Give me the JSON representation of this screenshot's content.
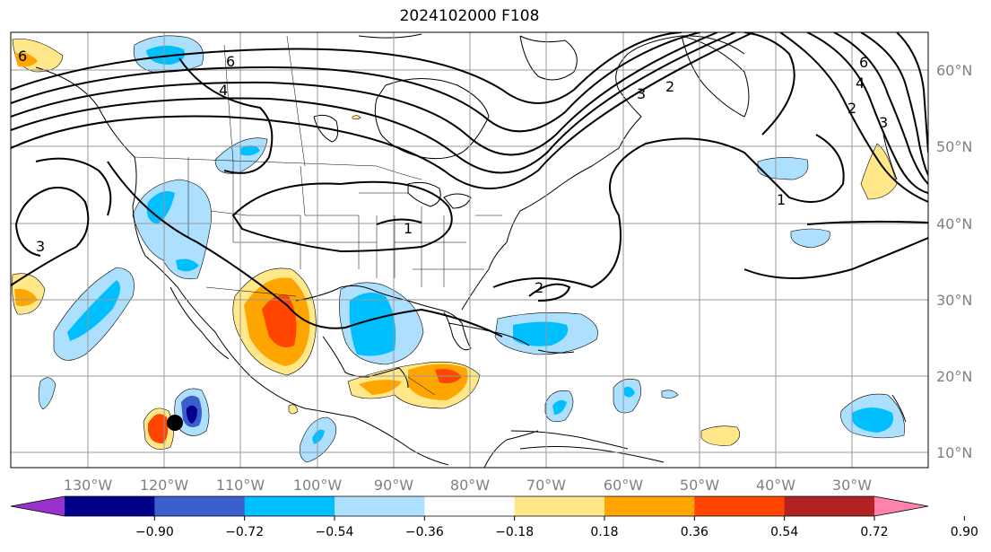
{
  "title": "2024102000 F108",
  "map": {
    "lon_labels": [
      "130°W",
      "120°W",
      "110°W",
      "100°W",
      "90°W",
      "80°W",
      "70°W",
      "60°W",
      "50°W",
      "40°W",
      "30°W"
    ],
    "lat_labels": [
      "60°N",
      "50°N",
      "40°N",
      "30°N",
      "20°N",
      "10°N"
    ],
    "contour_labels": [
      "6",
      "4",
      "6",
      "3",
      "2",
      "1",
      "2",
      "6",
      "4",
      "2",
      "3",
      "1",
      "3"
    ]
  },
  "colorbar": {
    "ticks": [
      "−0.90",
      "−0.72",
      "−0.54",
      "−0.36",
      "−0.18",
      "0.18",
      "0.36",
      "0.54",
      "0.72",
      "0.90"
    ],
    "colors": [
      "#9932CC",
      "#00008B",
      "#3A5FCD",
      "#00BFFF",
      "#ADDFFF",
      "#FFFFFF",
      "#FFE78A",
      "#FFA500",
      "#FF4500",
      "#B22222",
      "#FF82AB"
    ],
    "extend": "both"
  }
}
